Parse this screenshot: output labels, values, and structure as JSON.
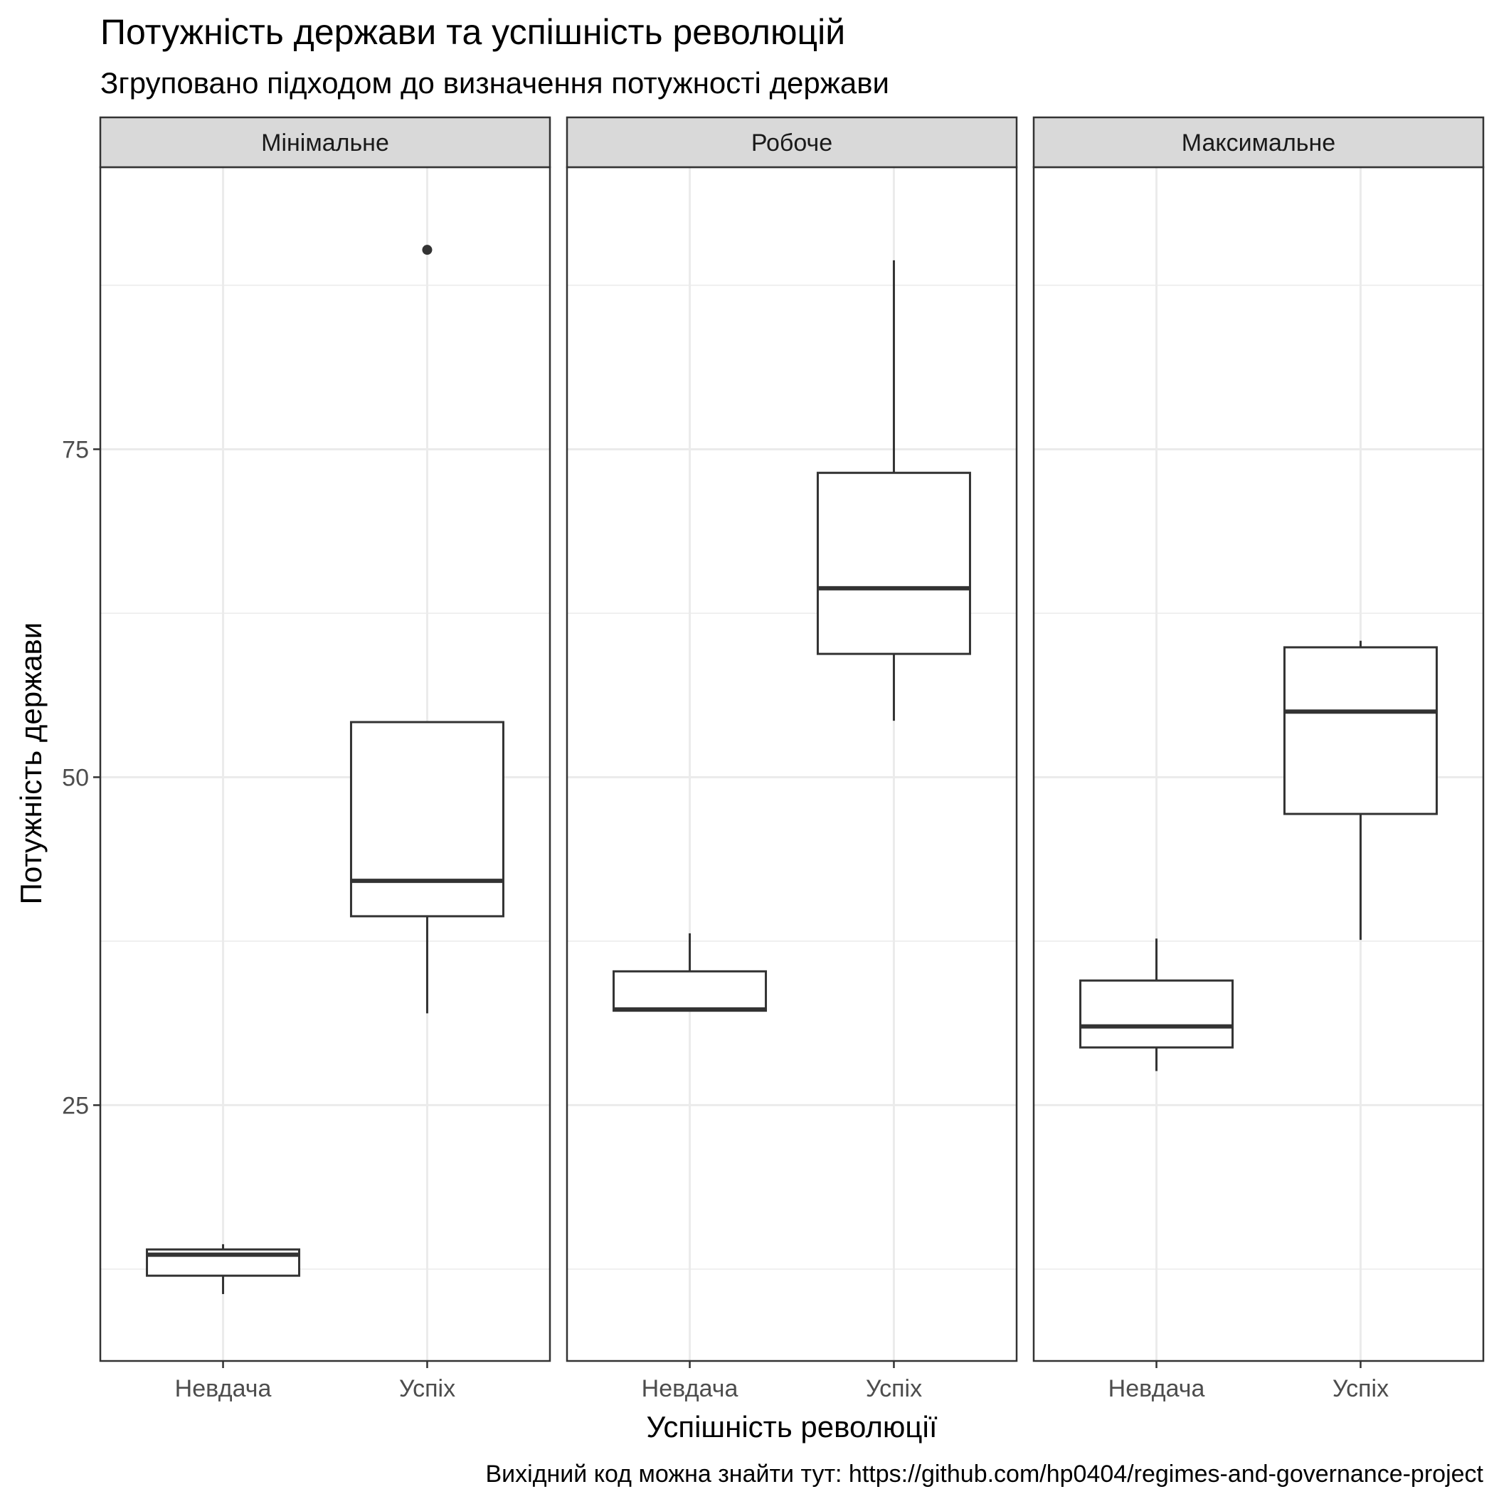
{
  "chart_data": {
    "type": "boxplot",
    "title": "Потужність держави та успішність революцій",
    "subtitle": "Згруповано підходом до визначення потужності держави",
    "xlabel": "Успішність революції",
    "ylabel": "Потужність держави",
    "caption": "Вихідний код можна знайти тут: https://github.com/hp0404/regimes-and-governance-project",
    "ylim": [
      5.5,
      96.5
    ],
    "yticks": [
      25,
      50,
      75
    ],
    "categories": [
      "Невдача",
      "Успіх"
    ],
    "grid": true,
    "facets": [
      {
        "label": "Мінімальне",
        "boxes": [
          {
            "category": "Невдача",
            "whisker_low": 10.6,
            "q1": 12.0,
            "median": 13.6,
            "q3": 14.0,
            "whisker_high": 14.4,
            "outliers": []
          },
          {
            "category": "Успіх",
            "whisker_low": 32.0,
            "q1": 39.4,
            "median": 42.1,
            "q3": 54.2,
            "whisker_high": 54.2,
            "outliers": [
              90.2
            ]
          }
        ]
      },
      {
        "label": "Робоче",
        "boxes": [
          {
            "category": "Невдача",
            "whisker_low": 32.2,
            "q1": 32.2,
            "median": 32.3,
            "q3": 35.2,
            "whisker_high": 38.1,
            "outliers": []
          },
          {
            "category": "Успіх",
            "whisker_low": 54.3,
            "q1": 59.4,
            "median": 64.4,
            "q3": 73.2,
            "whisker_high": 89.4,
            "outliers": []
          }
        ]
      },
      {
        "label": "Максимальне",
        "boxes": [
          {
            "category": "Невдача",
            "whisker_low": 27.6,
            "q1": 29.4,
            "median": 31.0,
            "q3": 34.5,
            "whisker_high": 37.7,
            "outliers": []
          },
          {
            "category": "Успіх",
            "whisker_low": 37.6,
            "q1": 47.2,
            "median": 55.0,
            "q3": 59.9,
            "whisker_high": 60.4,
            "outliers": []
          }
        ]
      }
    ]
  }
}
